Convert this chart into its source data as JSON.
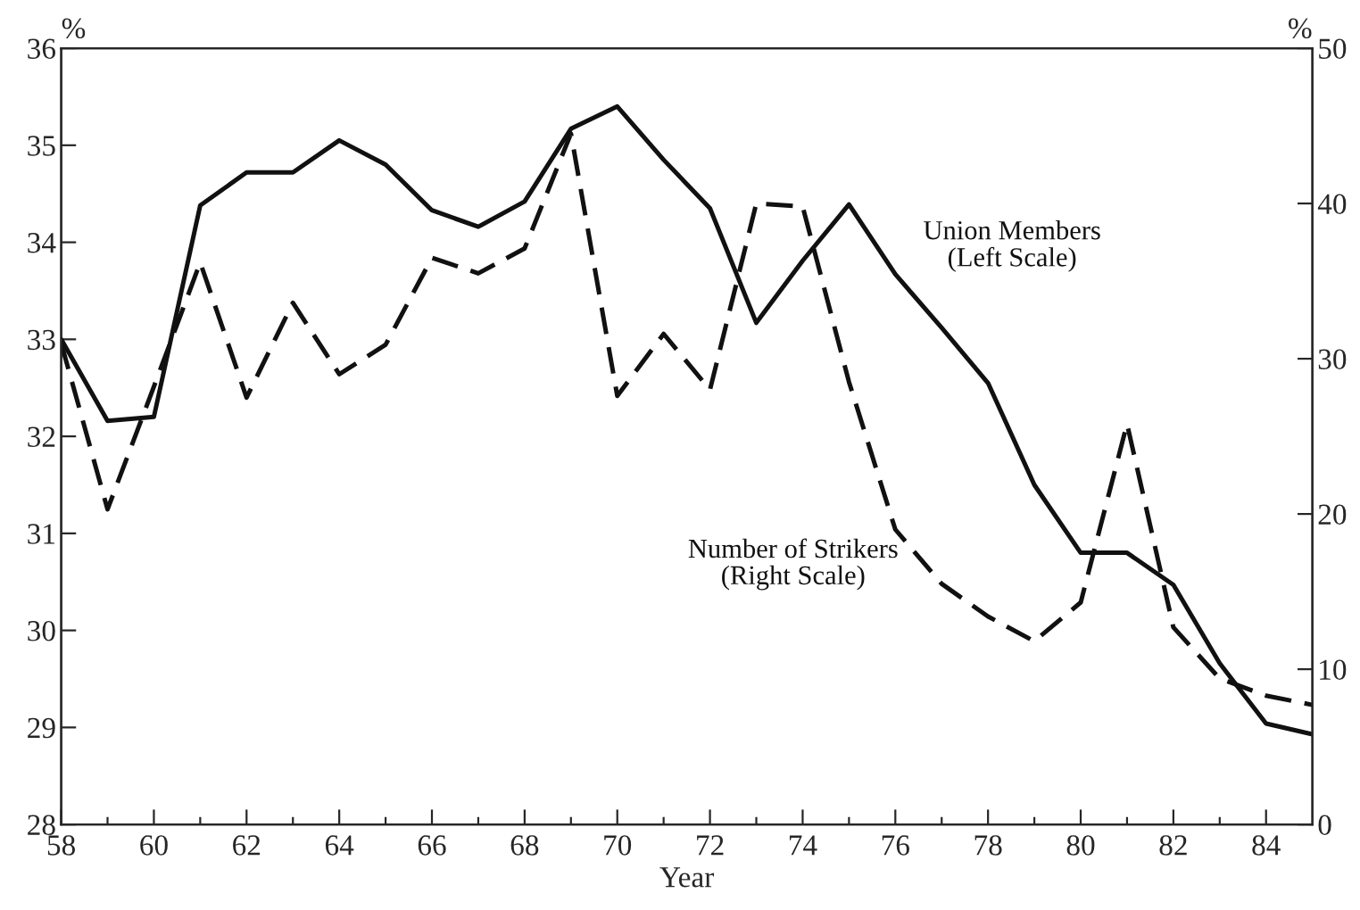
{
  "chart_data": {
    "type": "line",
    "xlabel": "Year",
    "ylabel": "%",
    "y2label": "%",
    "x": [
      58,
      59,
      60,
      61,
      62,
      63,
      64,
      65,
      66,
      67,
      68,
      69,
      70,
      71,
      72,
      73,
      74,
      75,
      76,
      77,
      78,
      79,
      80,
      81,
      82,
      83,
      84,
      85
    ],
    "series": [
      {
        "name": "Union Members\n(Left Scale)",
        "color": "#111111",
        "line_style": "solid",
        "values": [
          33.0,
          32.16,
          32.2,
          34.38,
          34.72,
          34.72,
          35.05,
          34.8,
          34.33,
          34.16,
          34.42,
          35.17,
          35.4,
          34.85,
          34.35,
          33.17,
          33.81,
          34.39,
          33.67,
          33.12,
          32.55,
          31.5,
          30.8,
          30.8,
          30.47,
          29.66,
          29.04,
          28.93
        ]
      },
      {
        "name": "Number of Strikers\n(Right Scale)",
        "color": "#111111",
        "line_style": "dashed",
        "axis": "y2",
        "values": [
          31,
          20.3,
          28.2,
          36.2,
          27.5,
          33.6,
          29.0,
          30.9,
          36.5,
          35.5,
          37.1,
          44.5,
          27.6,
          31.6,
          28.0,
          40.0,
          39.8,
          28.5,
          19.0,
          15.5,
          13.4,
          11.8,
          14.3,
          25.8,
          12.7,
          9.4,
          8.3,
          7.7
        ]
      }
    ],
    "xlim": [
      58,
      85
    ],
    "xticks": [
      58,
      {
        "value": 59,
        "label": null
      },
      60,
      {
        "value": 61,
        "label": null
      },
      62,
      {
        "value": 63,
        "label": null
      },
      64,
      {
        "value": 65,
        "label": null
      },
      66,
      {
        "value": 67,
        "label": null
      },
      68,
      {
        "value": 69,
        "label": null
      },
      70,
      {
        "value": 71,
        "label": null
      },
      72,
      {
        "value": 73,
        "label": null
      },
      74,
      {
        "value": 75,
        "label": null
      },
      76,
      {
        "value": 77,
        "label": null
      },
      78,
      {
        "value": 79,
        "label": null
      },
      80,
      {
        "value": 81,
        "label": null
      },
      82,
      {
        "value": 83,
        "label": null
      },
      84
    ],
    "ylim": [
      28,
      36
    ],
    "yticks": [
      28,
      29,
      30,
      31,
      32,
      33,
      34,
      35,
      36
    ],
    "y2lim": [
      0,
      50
    ],
    "y2ticks": [
      0,
      10,
      20,
      30,
      40,
      50
    ],
    "grid": false,
    "legend": false
  }
}
